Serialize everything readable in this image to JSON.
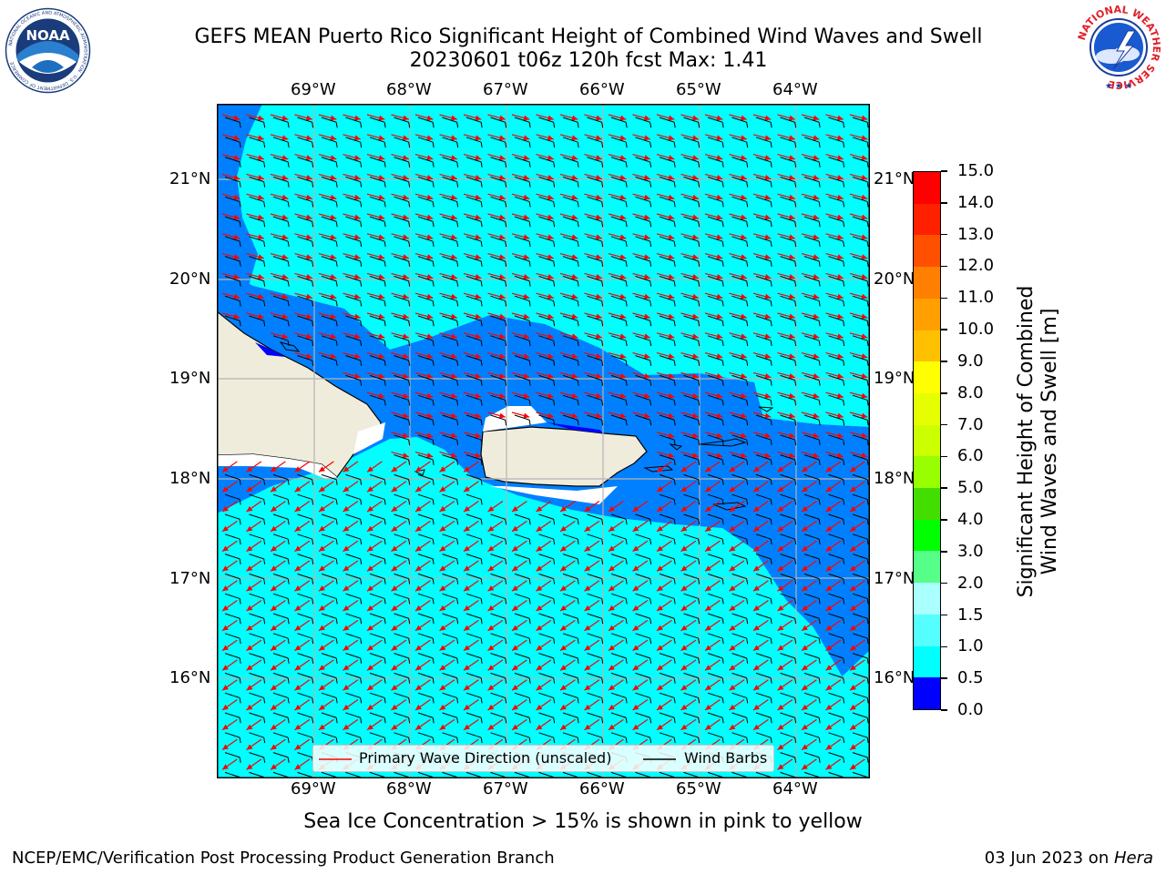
{
  "header": {
    "title_line1": "GEFS MEAN Puerto Rico Significant Height of Combined Wind Waves and Swell",
    "title_line2": "20230601 t06z 120h fcst   Max: 1.41"
  },
  "logos": {
    "noaa_text": "NOAA",
    "noaa_ring": "NATIONAL OCEANIC AND ATMOSPHERIC ADMINISTRATION · U.S. DEPARTMENT OF COMMERCE",
    "nws_ring": "NATIONAL WEATHER SERVICE"
  },
  "map": {
    "lon_labels": [
      "69°W",
      "68°W",
      "67°W",
      "66°W",
      "65°W",
      "64°W"
    ],
    "lat_labels": [
      "21°N",
      "20°N",
      "19°N",
      "18°N",
      "17°N",
      "16°N"
    ],
    "colors": {
      "ocean_light": "#00ffff",
      "ocean_mid": "#0080ff",
      "ocean_dark": "#0000ff",
      "land": "#f0ecdc",
      "arrow": "#ff0000",
      "barb": "#000000",
      "grid": "#b4b4b4"
    }
  },
  "legend": {
    "primary_wave": "Primary Wave Direction (unscaled)",
    "wind_barbs": "Wind Barbs"
  },
  "colorbar": {
    "label_line1": "Significant Height of Combined",
    "label_line2": "Wind Waves and Swell [m]",
    "ticks": [
      "15.0",
      "14.0",
      "13.0",
      "12.0",
      "11.0",
      "10.0",
      "9.0",
      "8.0",
      "7.0",
      "6.0",
      "5.0",
      "4.0",
      "3.0",
      "2.0",
      "1.5",
      "1.0",
      "0.5",
      "0.0"
    ],
    "colors": [
      "#ff0000",
      "#ff2000",
      "#ff5000",
      "#ff8000",
      "#ffa000",
      "#ffc000",
      "#ffff00",
      "#e6ff00",
      "#ccff00",
      "#99ff00",
      "#44dd00",
      "#00ff00",
      "#55ff88",
      "#aaffff",
      "#55ffff",
      "#00ffff",
      "#0080ff",
      "#0000ff"
    ]
  },
  "footer": {
    "ice_note": "Sea Ice Concentration > 15% is shown in pink to yellow",
    "left": "NCEP/EMC/Verification Post Processing Product Generation Branch",
    "right_date": "03 Jun 2023 on ",
    "right_host": "Hera"
  }
}
